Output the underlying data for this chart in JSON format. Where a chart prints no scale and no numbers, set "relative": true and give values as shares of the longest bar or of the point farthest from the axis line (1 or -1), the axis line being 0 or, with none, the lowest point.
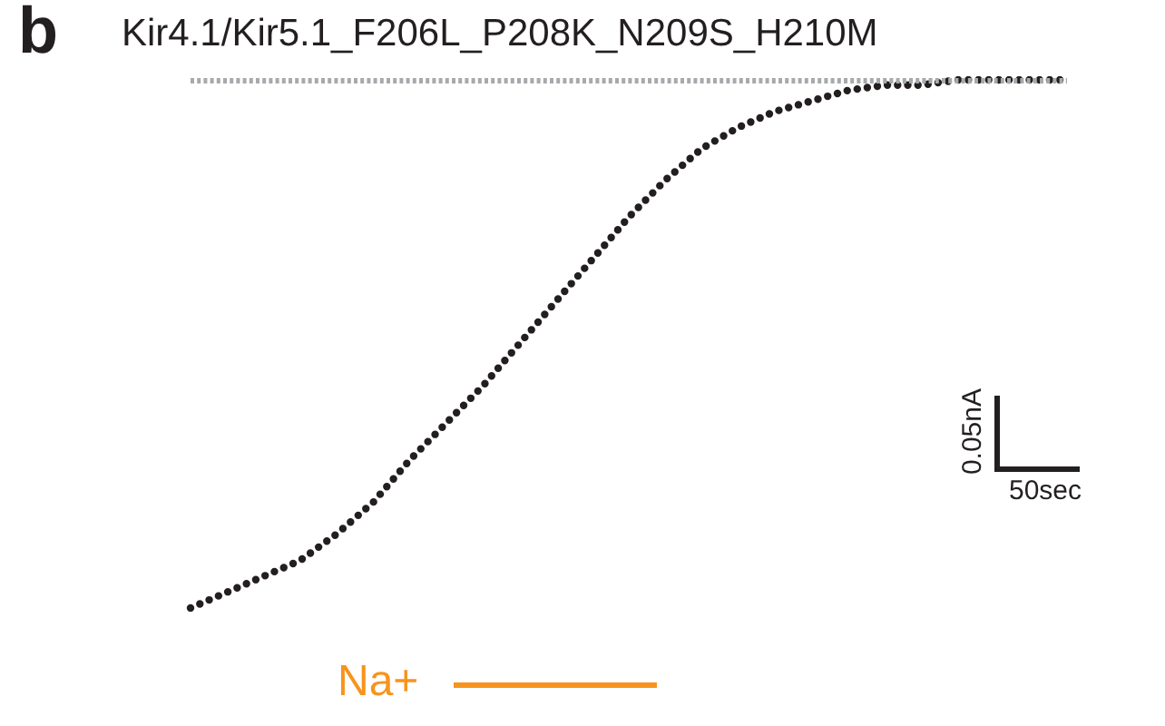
{
  "chart_data": {
    "type": "line",
    "relative": true,
    "title": "Kir4.1/Kir5.1_F206L_P208K_N209S_H210M",
    "annotations": [
      "b",
      "0.05nA",
      "50sec",
      "Na+"
    ],
    "categories": [
      null,
      null,
      null,
      null,
      null,
      null,
      null,
      null,
      null,
      null,
      null,
      null,
      null,
      null,
      null,
      null,
      null,
      null,
      null,
      null,
      null,
      null,
      null,
      null,
      null
    ],
    "series": [
      {
        "color": "#231f20",
        "values": [
          0,
          0.03,
          0.06,
          0.09,
          0.14,
          0.2,
          0.28,
          0.35,
          0.42,
          0.5,
          0.58,
          0.66,
          0.74,
          0.81,
          0.87,
          0.91,
          0.94,
          0.96,
          0.98,
          0.99,
          0.99,
          1,
          1,
          1,
          1
        ]
      }
    ],
    "ref_lines": [
      {
        "axis": "y",
        "value": 1,
        "color": "#a7a9ac",
        "line_style": "dotted"
      }
    ],
    "line_style": "dotted",
    "marker": "none",
    "grid": false
  }
}
